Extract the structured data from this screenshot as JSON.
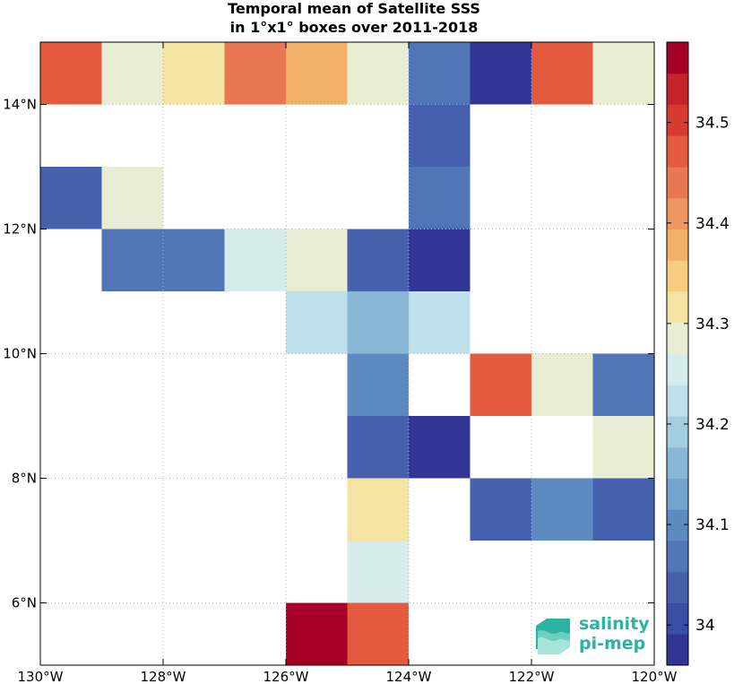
{
  "chart_data": {
    "type": "heatmap",
    "title": [
      "Temporal mean of Satellite SSS",
      "in 1°x1° boxes over 2011-2018"
    ],
    "xlim": [
      -130,
      -120
    ],
    "ylim": [
      5,
      15
    ],
    "x_ticks": [
      -130,
      -128,
      -126,
      -124,
      -122,
      -120
    ],
    "x_tick_labels": [
      "130°W",
      "128°W",
      "126°W",
      "124°W",
      "122°W",
      "120°W"
    ],
    "y_ticks": [
      6,
      8,
      10,
      12,
      14
    ],
    "y_tick_labels": [
      "6°N",
      "8°N",
      "10°N",
      "12°N",
      "14°N"
    ],
    "grid": true,
    "colorbar": {
      "range": [
        33.96,
        34.58
      ],
      "levels": 20,
      "tick_values": [
        34.0,
        34.1,
        34.2,
        34.3,
        34.4,
        34.5
      ],
      "tick_labels": [
        "34",
        "34.1",
        "34.2",
        "34.3",
        "34.4",
        "34.5"
      ],
      "colors": [
        "#313695",
        "#3a4ca3",
        "#4561ad",
        "#5175b7",
        "#5e8ac2",
        "#74a3cb",
        "#89b8d6",
        "#a4cee0",
        "#bfe0ea",
        "#d6ecec",
        "#e9edd3",
        "#f4e3a2",
        "#f6cd7e",
        "#f3b068",
        "#ee9560",
        "#e97852",
        "#e45a3f",
        "#d73a2f",
        "#c5232b",
        "#a50026"
      ]
    },
    "cells": [
      {
        "lon": -130,
        "lat": 14,
        "value": 34.48
      },
      {
        "lon": -129,
        "lat": 14,
        "value": 34.29
      },
      {
        "lon": -128,
        "lat": 14,
        "value": 34.32
      },
      {
        "lon": -127,
        "lat": 14,
        "value": 34.43
      },
      {
        "lon": -126,
        "lat": 14,
        "value": 34.39
      },
      {
        "lon": -125,
        "lat": 14,
        "value": 34.27
      },
      {
        "lon": -124,
        "lat": 14,
        "value": 34.06
      },
      {
        "lon": -123,
        "lat": 14,
        "value": 33.98
      },
      {
        "lon": -122,
        "lat": 14,
        "value": 34.46
      },
      {
        "lon": -121,
        "lat": 14,
        "value": 34.29
      },
      {
        "lon": -124,
        "lat": 13,
        "value": 34.04
      },
      {
        "lon": -130,
        "lat": 12,
        "value": 34.05
      },
      {
        "lon": -129,
        "lat": 12,
        "value": 34.27
      },
      {
        "lon": -124,
        "lat": 12,
        "value": 34.06
      },
      {
        "lon": -129,
        "lat": 11,
        "value": 34.06
      },
      {
        "lon": -128,
        "lat": 11,
        "value": 34.06
      },
      {
        "lon": -127,
        "lat": 11,
        "value": 34.25
      },
      {
        "lon": -126,
        "lat": 11,
        "value": 34.29
      },
      {
        "lon": -125,
        "lat": 11,
        "value": 34.03
      },
      {
        "lon": -124,
        "lat": 11,
        "value": 33.99
      },
      {
        "lon": -126,
        "lat": 10,
        "value": 34.21
      },
      {
        "lon": -125,
        "lat": 10,
        "value": 34.16
      },
      {
        "lon": -124,
        "lat": 10,
        "value": 34.21
      },
      {
        "lon": -125,
        "lat": 9,
        "value": 34.11
      },
      {
        "lon": -123,
        "lat": 9,
        "value": 34.46
      },
      {
        "lon": -122,
        "lat": 9,
        "value": 34.29
      },
      {
        "lon": -121,
        "lat": 9,
        "value": 34.08
      },
      {
        "lon": -125,
        "lat": 8,
        "value": 34.03
      },
      {
        "lon": -124,
        "lat": 8,
        "value": 33.99
      },
      {
        "lon": -121,
        "lat": 8,
        "value": 34.27
      },
      {
        "lon": -125,
        "lat": 7,
        "value": 34.31
      },
      {
        "lon": -123,
        "lat": 7,
        "value": 34.03
      },
      {
        "lon": -122,
        "lat": 7,
        "value": 34.11
      },
      {
        "lon": -121,
        "lat": 7,
        "value": 34.05
      },
      {
        "lon": -125,
        "lat": 6,
        "value": 34.25
      },
      {
        "lon": -126,
        "lat": 5,
        "value": 34.57
      },
      {
        "lon": -125,
        "lat": 5,
        "value": 34.46
      }
    ]
  },
  "logo": {
    "line1": "salinity",
    "line2": "pi-mep"
  }
}
